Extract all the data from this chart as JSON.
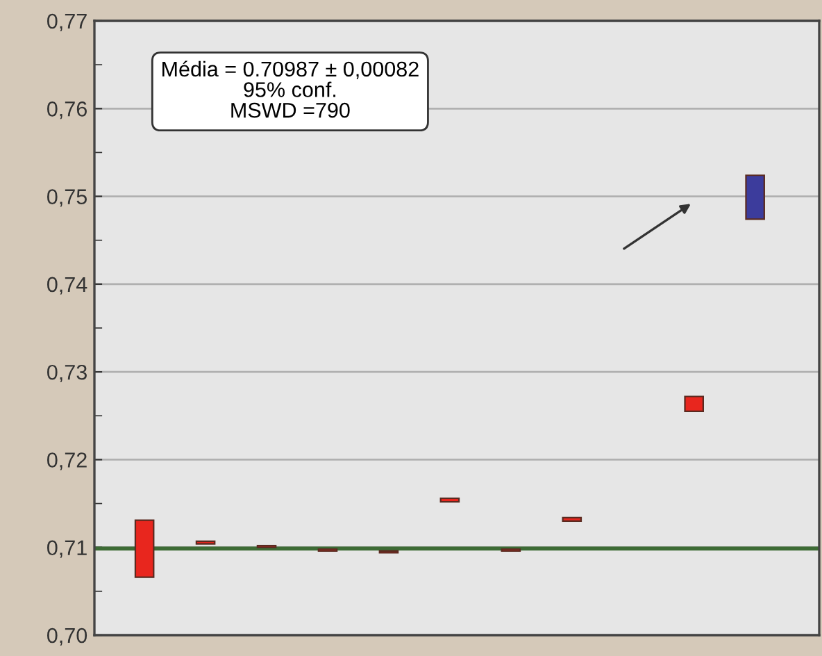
{
  "chart_data": {
    "type": "bar",
    "categories": [
      null,
      null,
      null,
      null,
      null,
      null,
      null,
      null,
      null,
      null,
      null
    ],
    "base": [
      0.7066,
      0.7104,
      0.71,
      0.7096,
      0.7094,
      0.7152,
      0.7096,
      0.713,
      null,
      0.7255,
      0.7474
    ],
    "values": [
      0.0065,
      0.0003,
      0.0002,
      0.0002,
      0.0002,
      0.0004,
      0.0002,
      0.0004,
      null,
      0.0017,
      0.005
    ],
    "colors": [
      "#e8261e",
      "#e8261e",
      "#e8261e",
      "#e8261e",
      "#e8261e",
      "#e8261e",
      "#e8261e",
      "#e8261e",
      "#e8261e",
      "#e8261e",
      "#3c3c9c"
    ],
    "ylim": [
      0.7,
      0.77
    ],
    "yticks": [
      {
        "value": 0.7,
        "label": "0,70"
      },
      {
        "value": 0.705,
        "label": null
      },
      {
        "value": 0.71,
        "label": "0,71"
      },
      {
        "value": 0.715,
        "label": null
      },
      {
        "value": 0.72,
        "label": "0,72"
      },
      {
        "value": 0.725,
        "label": null
      },
      {
        "value": 0.73,
        "label": "0,73"
      },
      {
        "value": 0.735,
        "label": null
      },
      {
        "value": 0.74,
        "label": "0,74"
      },
      {
        "value": 0.745,
        "label": null
      },
      {
        "value": 0.75,
        "label": "0,75"
      },
      {
        "value": 0.755,
        "label": null
      },
      {
        "value": 0.76,
        "label": "0,76"
      },
      {
        "value": 0.765,
        "label": null
      },
      {
        "value": 0.77,
        "label": "0,77"
      }
    ],
    "grid": "y",
    "tick_labels": "y",
    "ref_lines": [
      {
        "axis": "y",
        "value": 0.70987,
        "color": "#3d6b35"
      }
    ],
    "annotations": [
      "Média = 0.70987 ± 0,00082\n95% conf.\nMSWD =790"
    ]
  }
}
